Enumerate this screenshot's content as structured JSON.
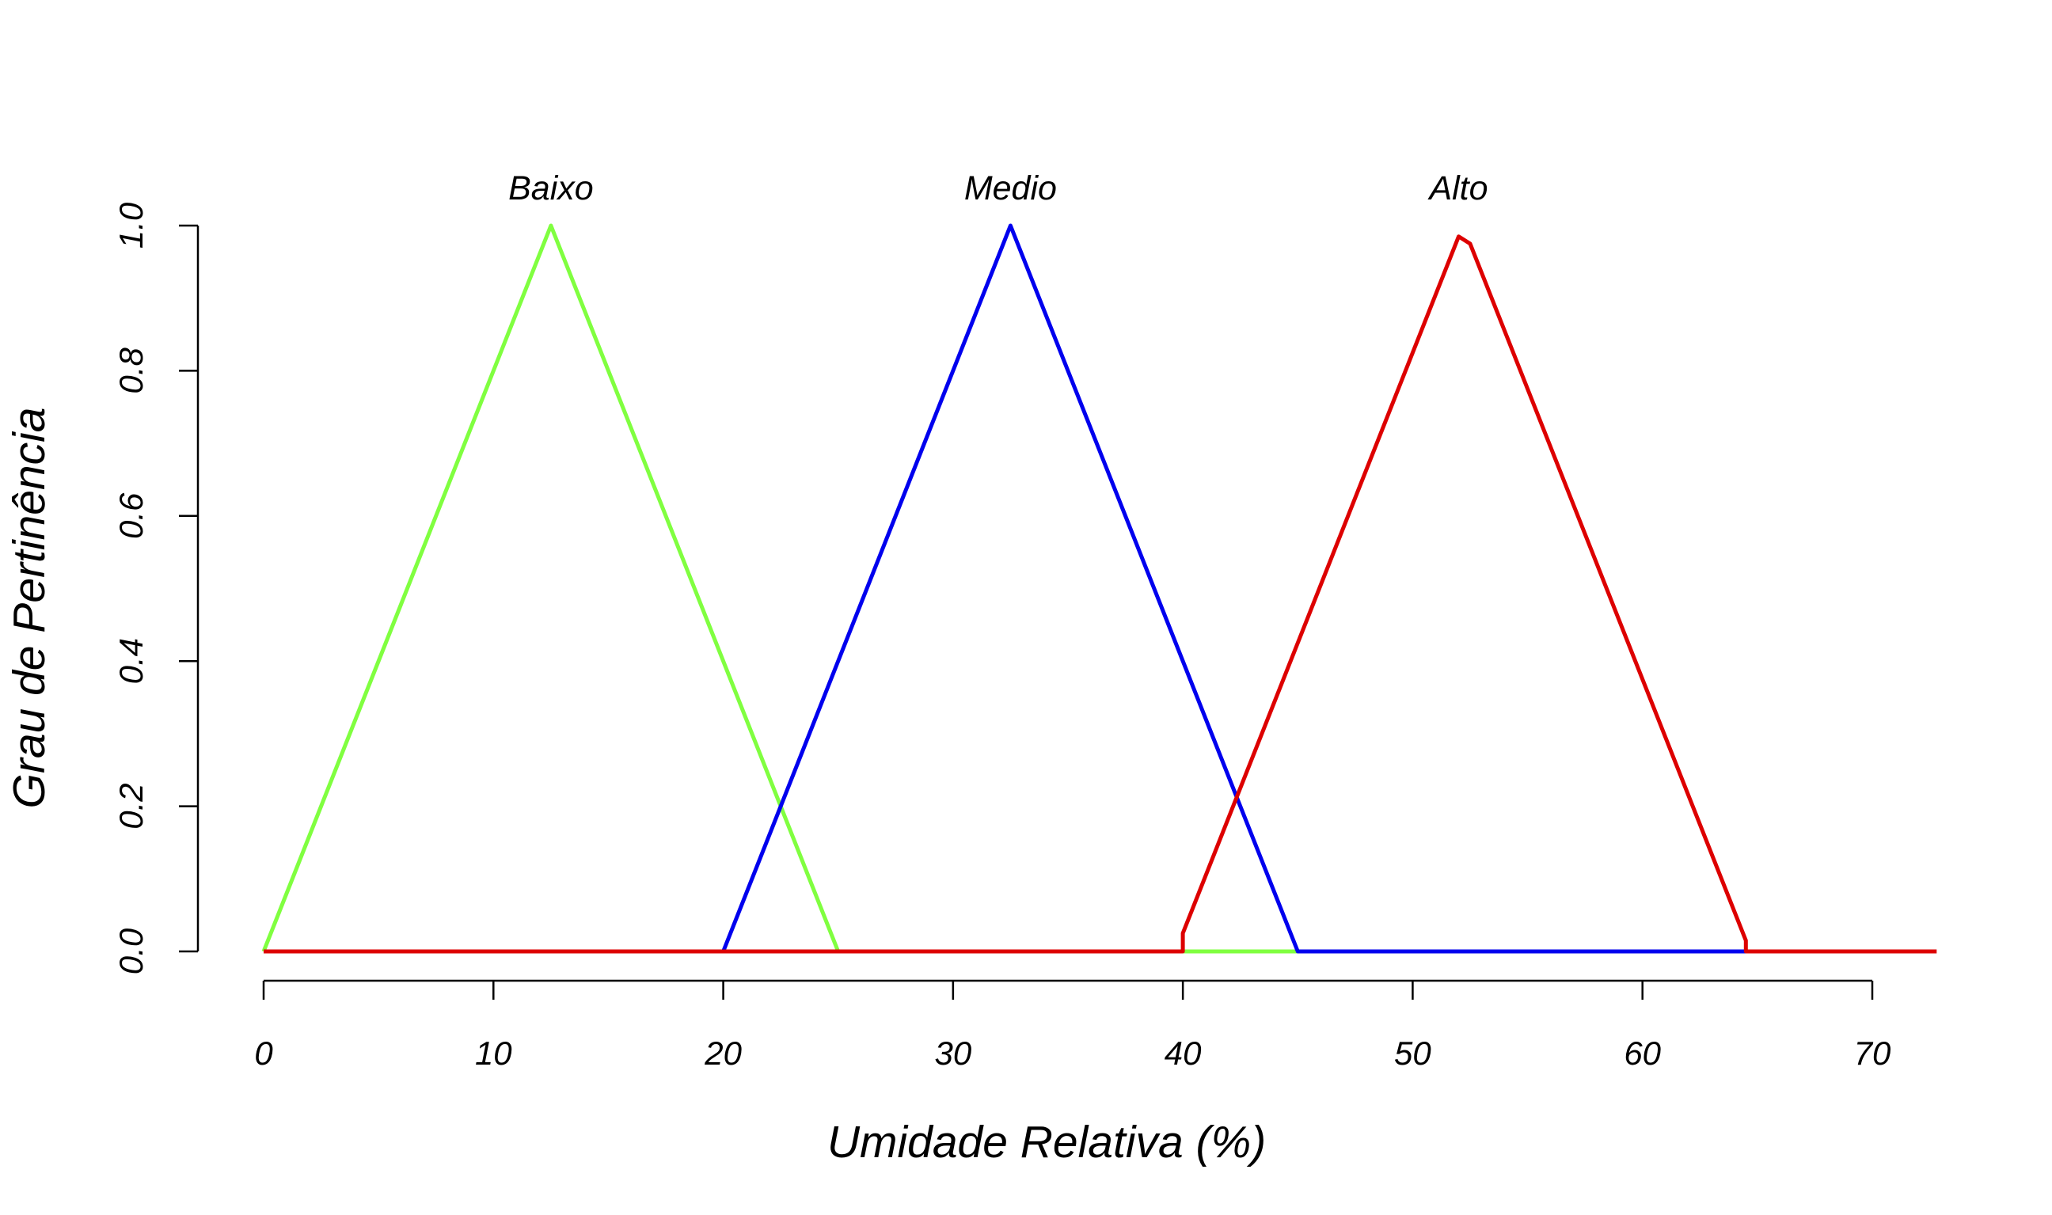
{
  "chart_data": {
    "type": "line",
    "xlabel": "Umidade Relativa (%)",
    "ylabel": "Grau de Pertinência",
    "xlim": [
      0,
      70
    ],
    "ylim": [
      0,
      1
    ],
    "x_ticks": [
      0,
      10,
      20,
      30,
      40,
      50,
      60,
      70
    ],
    "x_tick_labels": [
      "0",
      "10",
      "20",
      "30",
      "40",
      "50",
      "60",
      "70"
    ],
    "y_ticks": [
      0,
      0.2,
      0.4,
      0.6,
      0.8,
      1
    ],
    "y_tick_labels": [
      "0.0",
      "0.2",
      "0.4",
      "0.6",
      "0.8",
      "1.0"
    ],
    "grid": false,
    "series": [
      {
        "name": "Baixo",
        "color": "#80ff40",
        "x": [
          0,
          12.5,
          25,
          45
        ],
        "y": [
          0,
          1,
          0,
          0
        ]
      },
      {
        "name": "Medio",
        "color": "#0000ee",
        "x": [
          20,
          32.5,
          45,
          64.5
        ],
        "y": [
          0,
          1,
          0,
          0
        ]
      },
      {
        "name": "Alto",
        "color": "#dd0000",
        "x": [
          0,
          40,
          40,
          52,
          52.5,
          64.5,
          64.5,
          72.8
        ],
        "y": [
          0,
          0,
          0.025,
          0.985,
          0.975,
          0.015,
          0,
          0
        ]
      }
    ]
  }
}
